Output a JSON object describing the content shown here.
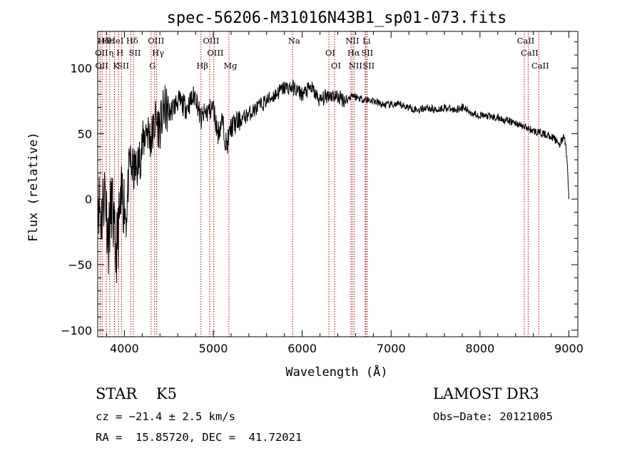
{
  "chart_data": {
    "type": "line",
    "title": "spec-56206-M31016N43B1_sp01-073.fits",
    "xlabel": "Wavelength (Å)",
    "ylabel": "Flux (relative)",
    "xlim": [
      3700,
      9100
    ],
    "ylim": [
      -105,
      128
    ],
    "xticks": [
      4000,
      5000,
      6000,
      7000,
      8000,
      9000
    ],
    "yticks": [
      -100,
      -50,
      0,
      50,
      100
    ],
    "series": [
      {
        "name": "flux",
        "x": [
          3700,
          3740,
          3780,
          3820,
          3860,
          3900,
          3940,
          3980,
          4020,
          4060,
          4100,
          4150,
          4200,
          4250,
          4300,
          4350,
          4400,
          4450,
          4500,
          4600,
          4700,
          4800,
          4860,
          4900,
          5000,
          5050,
          5100,
          5150,
          5200,
          5300,
          5400,
          5500,
          5600,
          5700,
          5800,
          5900,
          6000,
          6100,
          6200,
          6300,
          6400,
          6500,
          6560,
          6600,
          6700,
          6800,
          6900,
          7000,
          7100,
          7200,
          7300,
          7400,
          7500,
          7600,
          7700,
          7800,
          7900,
          8000,
          8100,
          8200,
          8300,
          8400,
          8500,
          8600,
          8700,
          8800,
          8850,
          8900,
          8950,
          8980,
          9000
        ],
        "y": [
          5,
          -15,
          10,
          -30,
          0,
          -45,
          -20,
          5,
          -15,
          30,
          20,
          25,
          40,
          55,
          45,
          60,
          55,
          70,
          65,
          75,
          70,
          80,
          60,
          65,
          70,
          50,
          60,
          40,
          55,
          60,
          65,
          70,
          75,
          80,
          85,
          85,
          80,
          85,
          75,
          80,
          78,
          75,
          80,
          78,
          76,
          75,
          72,
          72,
          72,
          70,
          68,
          70,
          68,
          70,
          68,
          70,
          66,
          64,
          63,
          62,
          60,
          58,
          55,
          52,
          50,
          48,
          45,
          42,
          48,
          30,
          0
        ]
      }
    ],
    "lines": [
      {
        "label": "Hδ",
        "x": 3750
      },
      {
        "label": "OII",
        "x": 3727
      },
      {
        "label": "OII",
        "x": 3729
      },
      {
        "label": "Hε",
        "x": 3797
      },
      {
        "label": "η",
        "x": 3835
      },
      {
        "label": "K",
        "x": 3889
      },
      {
        "label": "HeI",
        "x": 3889
      },
      {
        "label": "H",
        "x": 3934
      },
      {
        "label": "SII",
        "x": 3969
      },
      {
        "label": "Hδ",
        "x": 4072
      },
      {
        "label": "SII",
        "x": 4102
      },
      {
        "label": "G",
        "x": 4300
      },
      {
        "label": "OIII",
        "x": 4340
      },
      {
        "label": "Hγ",
        "x": 4363
      },
      {
        "label": "Hβ",
        "x": 4861
      },
      {
        "label": "OIII",
        "x": 4959
      },
      {
        "label": "OIII",
        "x": 5007
      },
      {
        "label": "Mg",
        "x": 5176
      },
      {
        "label": "Na",
        "x": 5893
      },
      {
        "label": "OI",
        "x": 6300
      },
      {
        "label": "OI",
        "x": 6364
      },
      {
        "label": "NII",
        "x": 6548
      },
      {
        "label": "Hα",
        "x": 6563
      },
      {
        "label": "NII",
        "x": 6583
      },
      {
        "label": "Li",
        "x": 6708
      },
      {
        "label": "SII",
        "x": 6716
      },
      {
        "label": "SII",
        "x": 6731
      },
      {
        "label": "CaII",
        "x": 8498
      },
      {
        "label": "CaII",
        "x": 8542
      },
      {
        "label": "CaII",
        "x": 8662
      }
    ]
  },
  "info": {
    "class_label": "STAR    K5",
    "survey": "LAMOST DR3",
    "cz": "cz = −21.4 ± 2.5 km/s",
    "obs_date": "Obs−Date: 20121005",
    "radec": "RA =  15.85720, DEC =  41.72021"
  },
  "colors": {
    "spectrum": "#000000",
    "line_marker": "#c00000",
    "axis": "#000000"
  }
}
